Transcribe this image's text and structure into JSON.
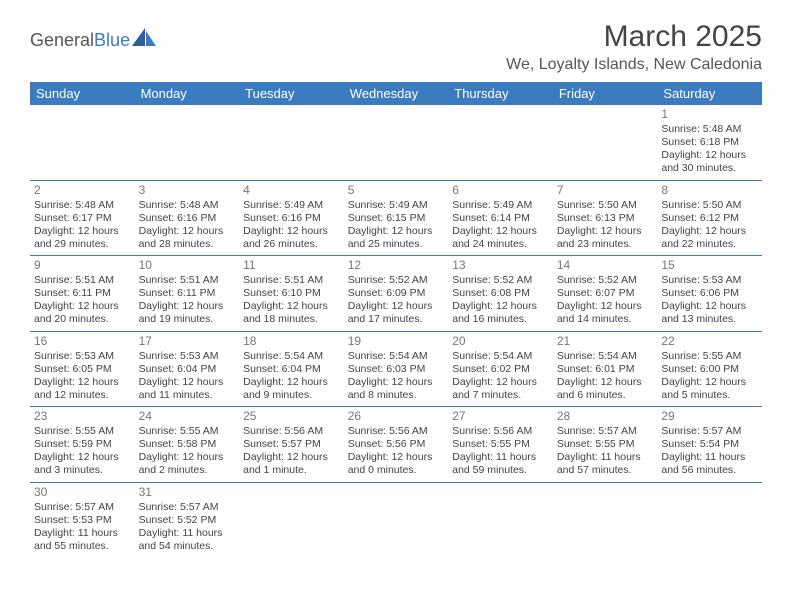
{
  "logo": {
    "word1": "General",
    "word2": "Blue"
  },
  "title": "March 2025",
  "location": "We, Loyalty Islands, New Caledonia",
  "columns": [
    "Sunday",
    "Monday",
    "Tuesday",
    "Wednesday",
    "Thursday",
    "Friday",
    "Saturday"
  ],
  "colors": {
    "header_bg": "#3b7bbf",
    "header_text": "#ffffff",
    "rule": "#3b7bbf",
    "text": "#444444",
    "daynum": "#777777",
    "background": "#ffffff"
  },
  "typography": {
    "title_fontsize": 30,
    "location_fontsize": 16,
    "header_fontsize": 13,
    "cell_fontsize": 10.5,
    "daynum_fontsize": 12
  },
  "weeks": [
    [
      null,
      null,
      null,
      null,
      null,
      null,
      {
        "day": 1,
        "sunrise": "5:48 AM",
        "sunset": "6:18 PM",
        "daylight": "12 hours and 30 minutes."
      }
    ],
    [
      {
        "day": 2,
        "sunrise": "5:48 AM",
        "sunset": "6:17 PM",
        "daylight": "12 hours and 29 minutes."
      },
      {
        "day": 3,
        "sunrise": "5:48 AM",
        "sunset": "6:16 PM",
        "daylight": "12 hours and 28 minutes."
      },
      {
        "day": 4,
        "sunrise": "5:49 AM",
        "sunset": "6:16 PM",
        "daylight": "12 hours and 26 minutes."
      },
      {
        "day": 5,
        "sunrise": "5:49 AM",
        "sunset": "6:15 PM",
        "daylight": "12 hours and 25 minutes."
      },
      {
        "day": 6,
        "sunrise": "5:49 AM",
        "sunset": "6:14 PM",
        "daylight": "12 hours and 24 minutes."
      },
      {
        "day": 7,
        "sunrise": "5:50 AM",
        "sunset": "6:13 PM",
        "daylight": "12 hours and 23 minutes."
      },
      {
        "day": 8,
        "sunrise": "5:50 AM",
        "sunset": "6:12 PM",
        "daylight": "12 hours and 22 minutes."
      }
    ],
    [
      {
        "day": 9,
        "sunrise": "5:51 AM",
        "sunset": "6:11 PM",
        "daylight": "12 hours and 20 minutes."
      },
      {
        "day": 10,
        "sunrise": "5:51 AM",
        "sunset": "6:11 PM",
        "daylight": "12 hours and 19 minutes."
      },
      {
        "day": 11,
        "sunrise": "5:51 AM",
        "sunset": "6:10 PM",
        "daylight": "12 hours and 18 minutes."
      },
      {
        "day": 12,
        "sunrise": "5:52 AM",
        "sunset": "6:09 PM",
        "daylight": "12 hours and 17 minutes."
      },
      {
        "day": 13,
        "sunrise": "5:52 AM",
        "sunset": "6:08 PM",
        "daylight": "12 hours and 16 minutes."
      },
      {
        "day": 14,
        "sunrise": "5:52 AM",
        "sunset": "6:07 PM",
        "daylight": "12 hours and 14 minutes."
      },
      {
        "day": 15,
        "sunrise": "5:53 AM",
        "sunset": "6:06 PM",
        "daylight": "12 hours and 13 minutes."
      }
    ],
    [
      {
        "day": 16,
        "sunrise": "5:53 AM",
        "sunset": "6:05 PM",
        "daylight": "12 hours and 12 minutes."
      },
      {
        "day": 17,
        "sunrise": "5:53 AM",
        "sunset": "6:04 PM",
        "daylight": "12 hours and 11 minutes."
      },
      {
        "day": 18,
        "sunrise": "5:54 AM",
        "sunset": "6:04 PM",
        "daylight": "12 hours and 9 minutes."
      },
      {
        "day": 19,
        "sunrise": "5:54 AM",
        "sunset": "6:03 PM",
        "daylight": "12 hours and 8 minutes."
      },
      {
        "day": 20,
        "sunrise": "5:54 AM",
        "sunset": "6:02 PM",
        "daylight": "12 hours and 7 minutes."
      },
      {
        "day": 21,
        "sunrise": "5:54 AM",
        "sunset": "6:01 PM",
        "daylight": "12 hours and 6 minutes."
      },
      {
        "day": 22,
        "sunrise": "5:55 AM",
        "sunset": "6:00 PM",
        "daylight": "12 hours and 5 minutes."
      }
    ],
    [
      {
        "day": 23,
        "sunrise": "5:55 AM",
        "sunset": "5:59 PM",
        "daylight": "12 hours and 3 minutes."
      },
      {
        "day": 24,
        "sunrise": "5:55 AM",
        "sunset": "5:58 PM",
        "daylight": "12 hours and 2 minutes."
      },
      {
        "day": 25,
        "sunrise": "5:56 AM",
        "sunset": "5:57 PM",
        "daylight": "12 hours and 1 minute."
      },
      {
        "day": 26,
        "sunrise": "5:56 AM",
        "sunset": "5:56 PM",
        "daylight": "12 hours and 0 minutes."
      },
      {
        "day": 27,
        "sunrise": "5:56 AM",
        "sunset": "5:55 PM",
        "daylight": "11 hours and 59 minutes."
      },
      {
        "day": 28,
        "sunrise": "5:57 AM",
        "sunset": "5:55 PM",
        "daylight": "11 hours and 57 minutes."
      },
      {
        "day": 29,
        "sunrise": "5:57 AM",
        "sunset": "5:54 PM",
        "daylight": "11 hours and 56 minutes."
      }
    ],
    [
      {
        "day": 30,
        "sunrise": "5:57 AM",
        "sunset": "5:53 PM",
        "daylight": "11 hours and 55 minutes."
      },
      {
        "day": 31,
        "sunrise": "5:57 AM",
        "sunset": "5:52 PM",
        "daylight": "11 hours and 54 minutes."
      },
      null,
      null,
      null,
      null,
      null
    ]
  ],
  "labels": {
    "sunrise": "Sunrise:",
    "sunset": "Sunset:",
    "daylight": "Daylight:"
  }
}
